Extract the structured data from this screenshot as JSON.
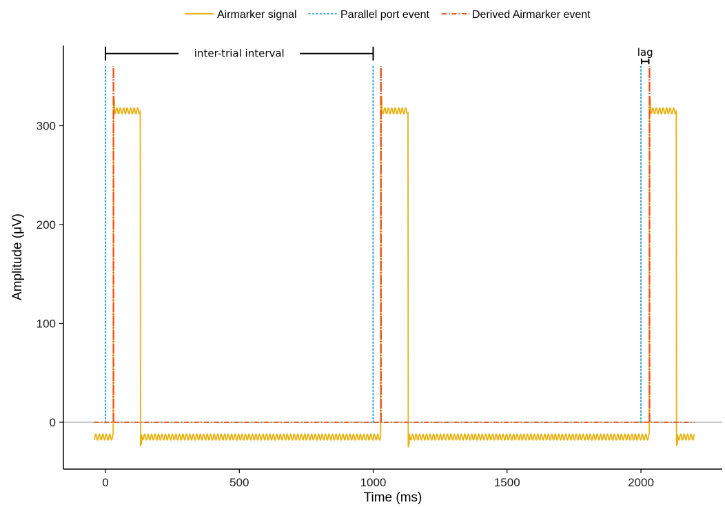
{
  "chart_data": {
    "type": "line",
    "title": "",
    "xlabel": "Time (ms)",
    "ylabel": "Amplitude (μV)",
    "xlim": [
      -150,
      2310
    ],
    "ylim": [
      -47,
      380
    ],
    "xticks": [
      0,
      500,
      1000,
      1500,
      2000
    ],
    "yticks": [
      0,
      100,
      200,
      300
    ],
    "hline": 0,
    "grid": false,
    "legend_position": "top",
    "colors": {
      "airmarker_signal": "#e8b10e",
      "parallel_port": "#3fa9d6",
      "derived_event": "#e8541a",
      "zero_line": "#b3b3b3"
    },
    "series": [
      {
        "name": "Airmarker signal",
        "style": "solid",
        "baseline_low": -15,
        "plateau_high": 315,
        "ripple_amplitude": 3,
        "ripple_period_ms": 13,
        "pulses": [
          {
            "rise": 30,
            "fall": 131
          },
          {
            "rise": 1029,
            "fall": 1131
          },
          {
            "rise": 2032,
            "fall": 2133
          }
        ],
        "x_range": [
          -42,
          2200
        ]
      },
      {
        "name": "Parallel port event",
        "style": "dotted",
        "events_x": [
          0,
          1000,
          2000
        ],
        "height": 360
      },
      {
        "name": "Derived Airmarker event",
        "style": "dashdot",
        "events_x": [
          30,
          1029,
          2032
        ],
        "height": 360
      }
    ],
    "annotations": [
      {
        "text": "inter-trial interval",
        "x_start": 0,
        "x_end": 1000,
        "y": 373
      },
      {
        "text": "lag",
        "x_start": 2000,
        "x_end": 2032,
        "y": 365
      }
    ]
  }
}
